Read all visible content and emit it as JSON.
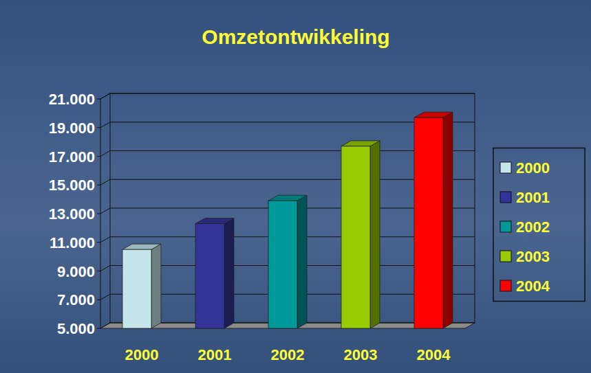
{
  "chart_data": {
    "type": "bar",
    "title": "Omzetontwikkeling",
    "categories": [
      "2000",
      "2001",
      "2002",
      "2003",
      "2004"
    ],
    "values": [
      10500,
      12300,
      13900,
      17700,
      19700
    ],
    "colors": [
      "#c4e6ea",
      "#333399",
      "#009999",
      "#99cc00",
      "#ff0000"
    ],
    "ylim": [
      5000,
      21000
    ],
    "yticks": [
      {
        "value": 5000,
        "label": "5.000"
      },
      {
        "value": 7000,
        "label": "7.000"
      },
      {
        "value": 9000,
        "label": "9.000"
      },
      {
        "value": 11000,
        "label": "11.000"
      },
      {
        "value": 13000,
        "label": "13.000"
      },
      {
        "value": 15000,
        "label": "15.000"
      },
      {
        "value": 17000,
        "label": "17.000"
      },
      {
        "value": 19000,
        "label": "19.000"
      },
      {
        "value": 21000,
        "label": "21.000"
      }
    ],
    "grid": true,
    "legend": "right"
  }
}
